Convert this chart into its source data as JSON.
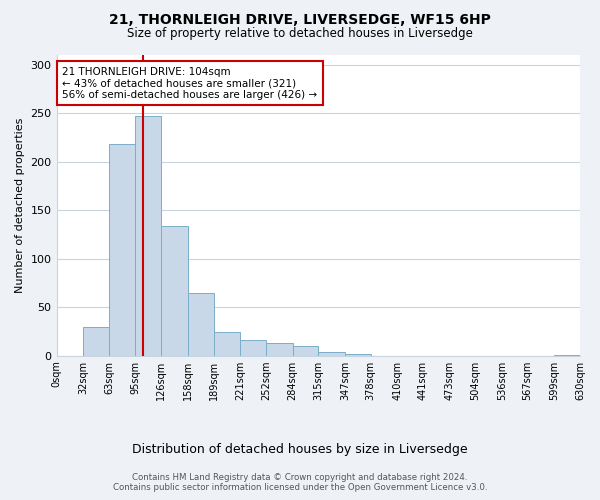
{
  "title": "21, THORNLEIGH DRIVE, LIVERSEDGE, WF15 6HP",
  "subtitle": "Size of property relative to detached houses in Liversedge",
  "xlabel": "Distribution of detached houses by size in Liversedge",
  "ylabel": "Number of detached properties",
  "bin_labels": [
    "0sqm",
    "32sqm",
    "63sqm",
    "95sqm",
    "126sqm",
    "158sqm",
    "189sqm",
    "221sqm",
    "252sqm",
    "284sqm",
    "315sqm",
    "347sqm",
    "378sqm",
    "410sqm",
    "441sqm",
    "473sqm",
    "504sqm",
    "536sqm",
    "567sqm",
    "599sqm",
    "630sqm"
  ],
  "bin_edges": [
    0,
    32,
    63,
    95,
    126,
    158,
    189,
    221,
    252,
    284,
    315,
    347,
    378,
    410,
    441,
    473,
    504,
    536,
    567,
    599,
    630
  ],
  "bar_heights": [
    0,
    30,
    218,
    247,
    134,
    65,
    24,
    16,
    13,
    10,
    4,
    2,
    0,
    0,
    0,
    0,
    0,
    0,
    0,
    1,
    0
  ],
  "bar_color": "#c8d8e8",
  "bar_edgecolor": "#7aaec8",
  "property_line_x": 104,
  "property_line_color": "#cc0000",
  "annotation_line1": "21 THORNLEIGH DRIVE: 104sqm",
  "annotation_line2": "← 43% of detached houses are smaller (321)",
  "annotation_line3": "56% of semi-detached houses are larger (426) →",
  "annotation_box_edgecolor": "#cc0000",
  "annotation_box_facecolor": "#ffffff",
  "ylim": [
    0,
    310
  ],
  "yticks": [
    0,
    50,
    100,
    150,
    200,
    250,
    300
  ],
  "footer_line1": "Contains HM Land Registry data © Crown copyright and database right 2024.",
  "footer_line2": "Contains public sector information licensed under the Open Government Licence v3.0.",
  "background_color": "#eef2f7",
  "plot_background_color": "#ffffff",
  "grid_color": "#c8d4e0"
}
